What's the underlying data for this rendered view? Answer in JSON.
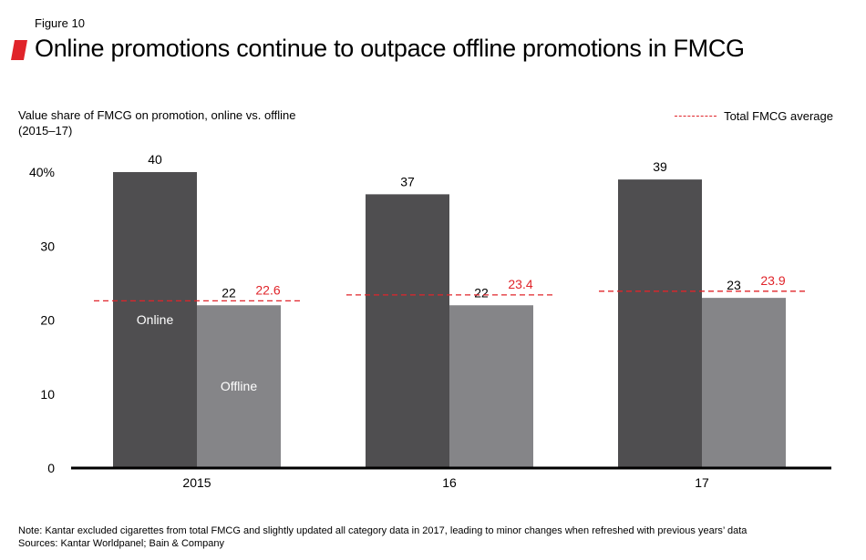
{
  "figure_label": "Figure 10",
  "title": "Online promotions continue to outpace offline promotions in FMCG",
  "subtitle_line1": "Value share of FMCG on promotion, online vs. offline",
  "subtitle_line2": "(2015–17)",
  "legend_label": "Total FMCG average",
  "note": "Note: Kantar excluded cigarettes from total FMCG and slightly updated all category data in 2017, leading to minor changes when refreshed with previous years’ data",
  "sources": "Sources: Kantar Worldpanel; Bain & Company",
  "colors": {
    "online": "#4f4e50",
    "offline": "#858588",
    "average": "#e0242a",
    "brand_mark": "#e0242a"
  },
  "chart_data": {
    "type": "bar",
    "categories": [
      "2015",
      "16",
      "17"
    ],
    "series": [
      {
        "name": "Online",
        "values": [
          40,
          37,
          39
        ]
      },
      {
        "name": "Offline",
        "values": [
          22,
          22,
          23
        ]
      }
    ],
    "average": {
      "name": "Total FMCG average",
      "values": [
        22.6,
        23.4,
        23.9
      ],
      "labels": [
        "22.6",
        "23.4",
        "23.9"
      ]
    },
    "data_labels": {
      "online": [
        "40",
        "37",
        "39"
      ],
      "offline": [
        "22",
        "22",
        "23"
      ]
    },
    "yticks": [
      {
        "value": 0,
        "label": "0"
      },
      {
        "value": 10,
        "label": "10"
      },
      {
        "value": 20,
        "label": "20"
      },
      {
        "value": 30,
        "label": "30"
      },
      {
        "value": 40,
        "label": "40%"
      }
    ],
    "ylim": [
      0,
      40
    ],
    "grid": false,
    "legend_position": "top-right"
  }
}
